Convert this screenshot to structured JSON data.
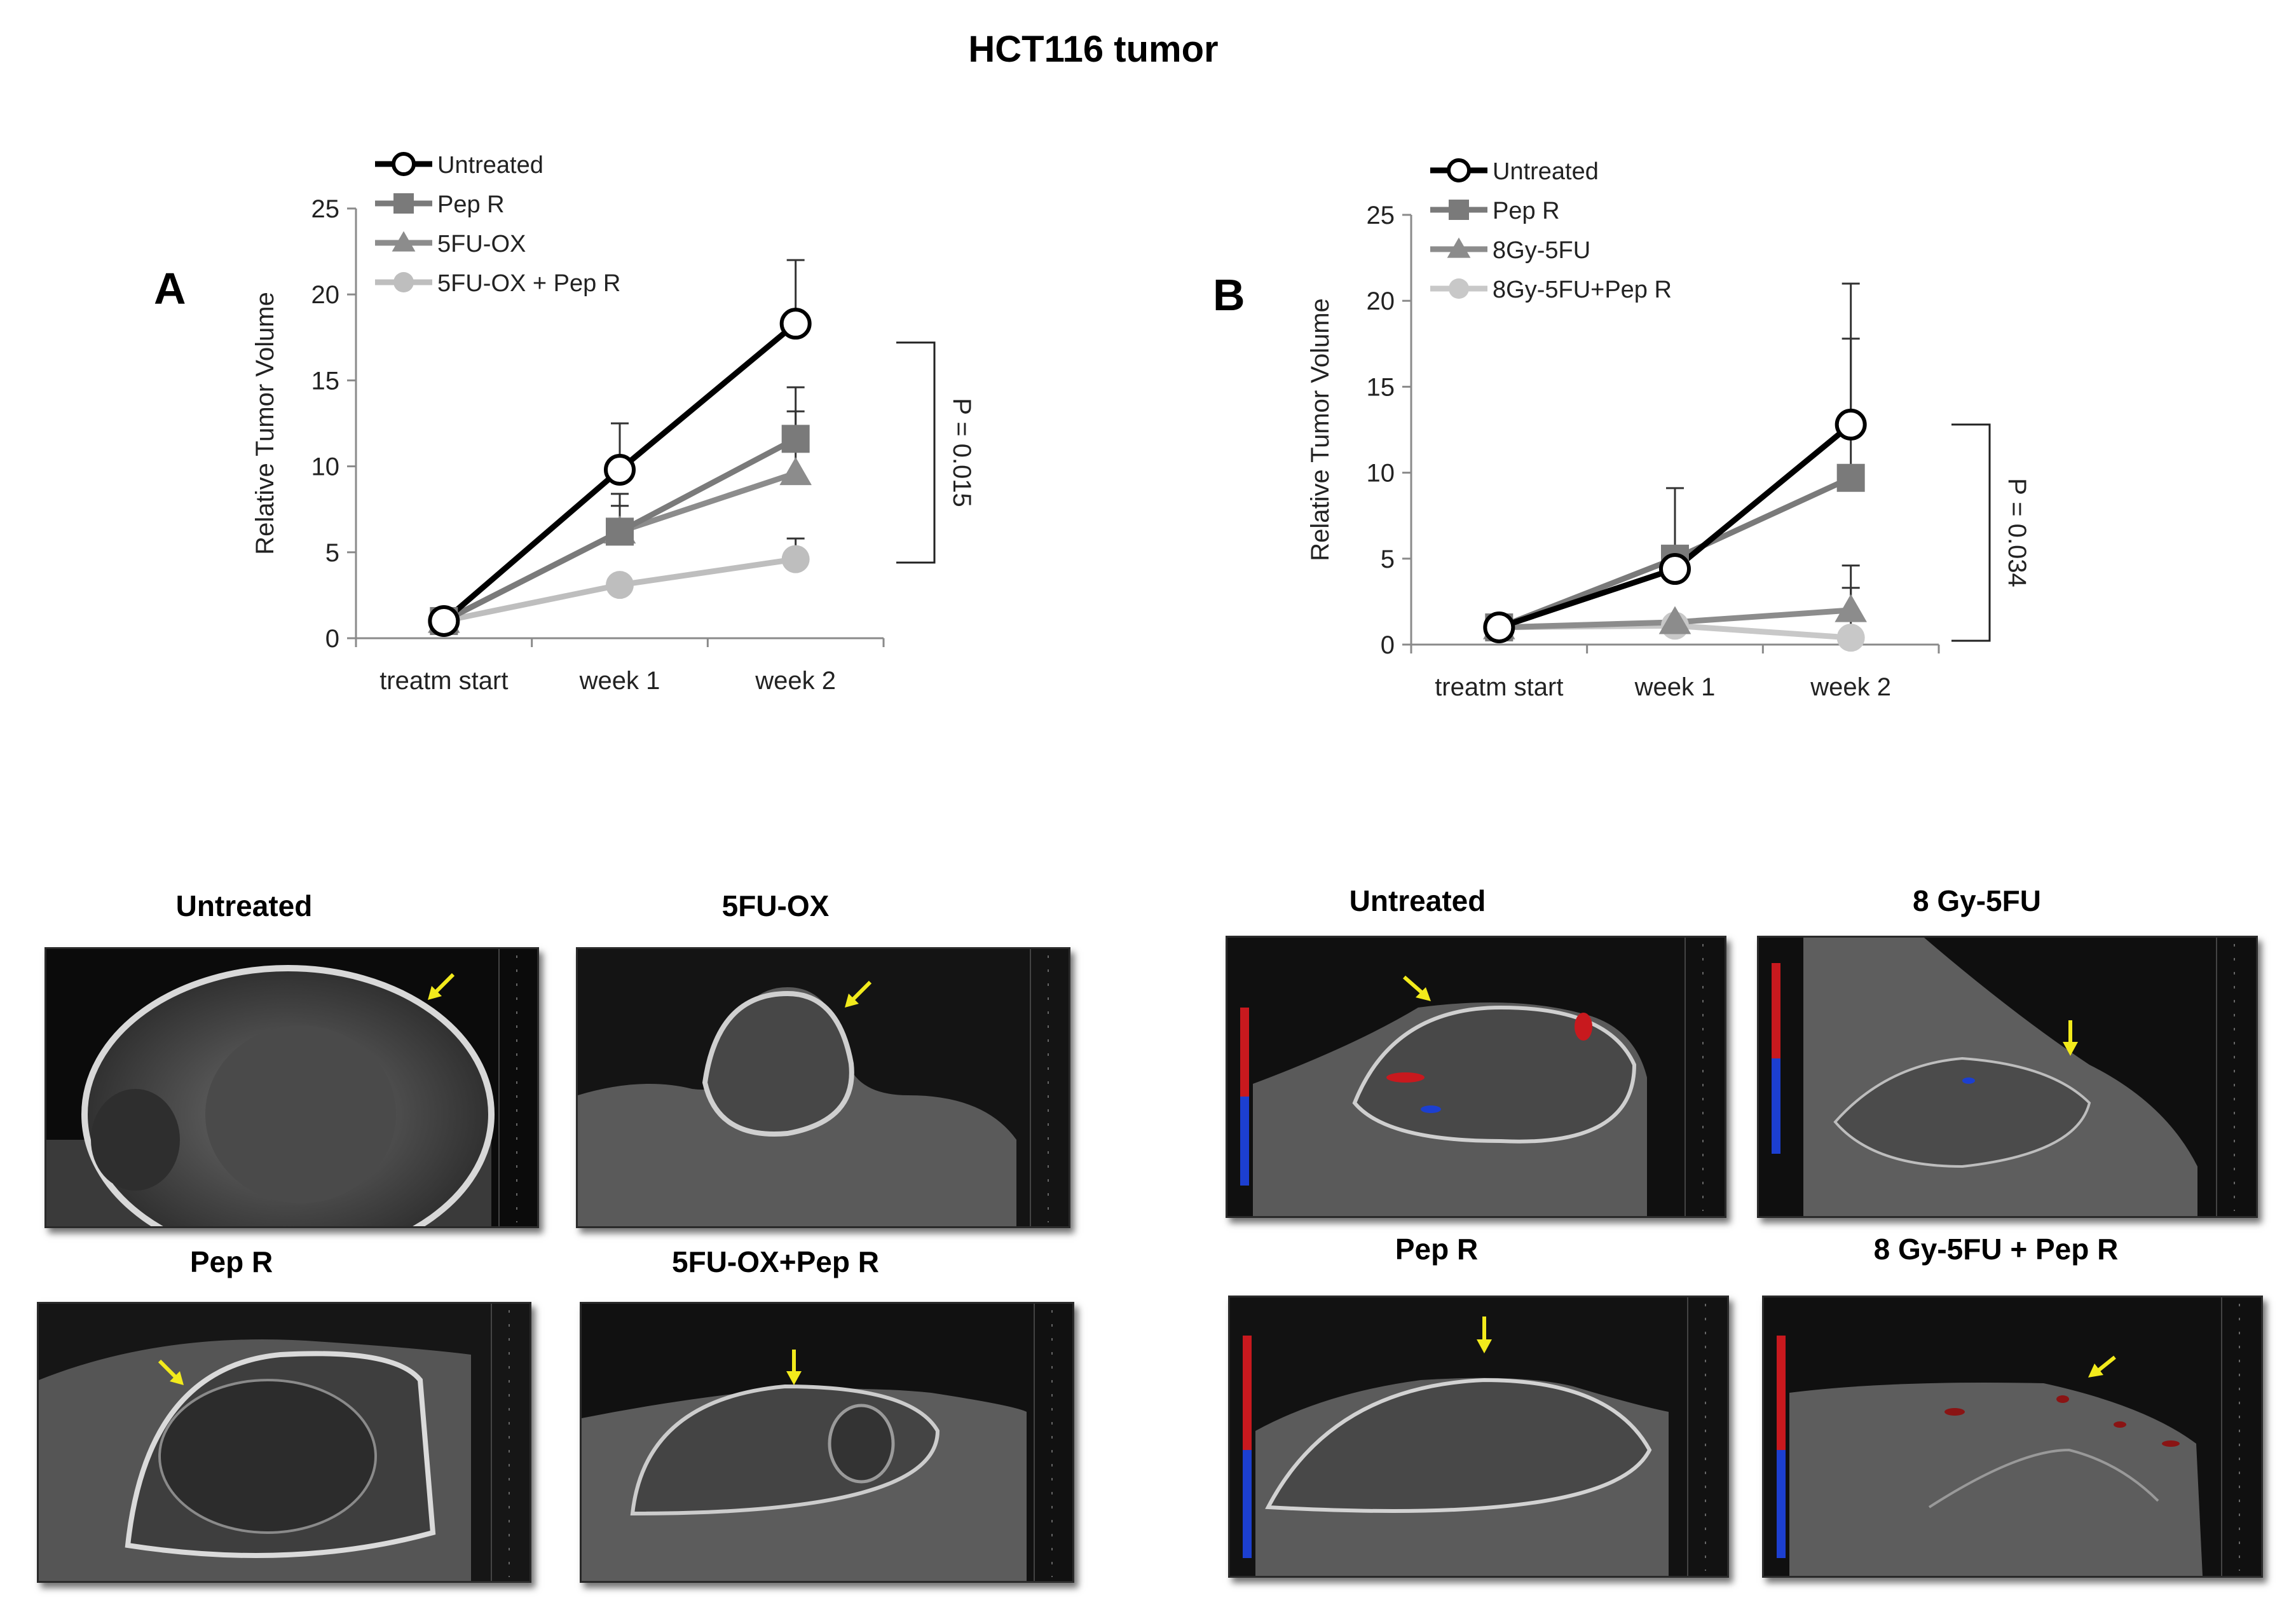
{
  "figure_title": "HCT116 tumor",
  "chart_data": [
    {
      "panel_label": "A",
      "type": "line",
      "title": "",
      "xlabel": "",
      "ylabel": "Relative Tumor Volume",
      "categories": [
        "treatm start",
        "week 1",
        "week 2"
      ],
      "ylim": [
        0,
        25
      ],
      "yticks": [
        0,
        5,
        10,
        15,
        20,
        25
      ],
      "grid": false,
      "legend_position": "top-left",
      "series": [
        {
          "name": "Untreated",
          "values": [
            1,
            9.8,
            18.3
          ],
          "errors": [
            0,
            2.7,
            3.7
          ],
          "marker": "open-circle",
          "color": "#000000"
        },
        {
          "name": "Pep R",
          "values": [
            1,
            6.2,
            11.6
          ],
          "errors": [
            0,
            2.2,
            3.0
          ],
          "marker": "square",
          "color": "#7a7a7a"
        },
        {
          "name": "5FU-OX",
          "values": [
            1,
            6.2,
            9.6
          ],
          "errors": [
            0,
            1.5,
            3.6
          ],
          "marker": "triangle",
          "color": "#8c8c8c"
        },
        {
          "name": "5FU-OX + Pep R",
          "values": [
            1,
            3.1,
            4.6
          ],
          "errors": [
            0,
            0,
            1.2
          ],
          "marker": "circle",
          "color": "#bebebe"
        }
      ],
      "annotation": "P = 0.015"
    },
    {
      "panel_label": "B",
      "type": "line",
      "title": "",
      "xlabel": "",
      "ylabel": "Relative Tumor Volume",
      "categories": [
        "treatm start",
        "week 1",
        "week 2"
      ],
      "ylim": [
        0,
        25
      ],
      "yticks": [
        0,
        5,
        10,
        15,
        20,
        25
      ],
      "grid": false,
      "legend_position": "top-left",
      "series": [
        {
          "name": "Untreated",
          "values": [
            1,
            4.4,
            12.8
          ],
          "errors": [
            0,
            0,
            8.2
          ],
          "marker": "open-circle",
          "color": "#000000"
        },
        {
          "name": "Pep R",
          "values": [
            1,
            5.0,
            9.7
          ],
          "errors": [
            0,
            4.1,
            8.1
          ],
          "marker": "square",
          "color": "#7a7a7a"
        },
        {
          "name": "8Gy-5FU",
          "values": [
            1,
            1.3,
            2.0
          ],
          "errors": [
            0,
            0,
            2.6
          ],
          "marker": "triangle",
          "color": "#8c8c8c"
        },
        {
          "name": "8Gy-5FU+Pep R",
          "values": [
            1,
            1.1,
            0.4
          ],
          "errors": [
            0,
            0,
            2.9
          ],
          "marker": "circle",
          "color": "#c8c8c8"
        }
      ],
      "annotation": "P = 0.034"
    }
  ],
  "ultrasound_panels": [
    {
      "id": "a-untreated",
      "title": "Untreated"
    },
    {
      "id": "a-5fuox",
      "title": "5FU-OX"
    },
    {
      "id": "a-pepr",
      "title": "Pep R"
    },
    {
      "id": "a-5fuox-pepr",
      "title": "5FU-OX+Pep R"
    },
    {
      "id": "b-untreated",
      "title": "Untreated"
    },
    {
      "id": "b-8gy",
      "title": "8 Gy-5FU"
    },
    {
      "id": "b-pepr",
      "title": "Pep R"
    },
    {
      "id": "b-8gy-pepr",
      "title": "8 Gy-5FU + Pep R"
    }
  ],
  "colors": {
    "arrow": "#f2ea1c",
    "doppler_red": "#c8191e",
    "doppler_blue": "#1c3fd0"
  }
}
